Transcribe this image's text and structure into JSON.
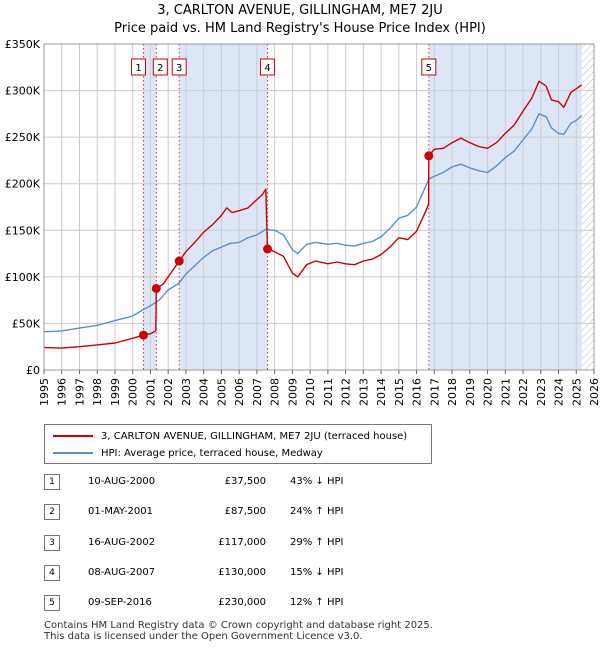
{
  "chart_data": {
    "type": "line",
    "title": "3, CARLTON AVENUE, GILLINGHAM, ME7 2JU",
    "subtitle": "Price paid vs. HM Land Registry's House Price Index (HPI)",
    "xlabel": "",
    "ylabel": "",
    "xlim": [
      1995,
      2026
    ],
    "ylim": [
      0,
      350000
    ],
    "x_ticks": [
      "1995",
      "1996",
      "1997",
      "1998",
      "1999",
      "2000",
      "2001",
      "2002",
      "2003",
      "2004",
      "2005",
      "2006",
      "2007",
      "2008",
      "2009",
      "2010",
      "2011",
      "2012",
      "2013",
      "2014",
      "2015",
      "2016",
      "2017",
      "2018",
      "2019",
      "2020",
      "2021",
      "2022",
      "2023",
      "2024",
      "2025",
      "2026"
    ],
    "y_ticks": [
      {
        "value": 0,
        "label": "£0"
      },
      {
        "value": 50000,
        "label": "£50K"
      },
      {
        "value": 100000,
        "label": "£100K"
      },
      {
        "value": 150000,
        "label": "£150K"
      },
      {
        "value": 200000,
        "label": "£200K"
      },
      {
        "value": 250000,
        "label": "£250K"
      },
      {
        "value": 300000,
        "label": "£300K"
      },
      {
        "value": 350000,
        "label": "£350K"
      }
    ],
    "colors": {
      "price": "#cc0000",
      "hpi": "#5b8fc9",
      "shade": "#dde6f7",
      "grid": "#cccccc"
    },
    "shaded_ranges": [
      [
        2000.61,
        2001.33
      ],
      [
        2002.62,
        2007.6
      ],
      [
        2016.69,
        2025.3
      ]
    ],
    "future_start": 2025.3,
    "series": [
      {
        "name": "3, CARLTON AVENUE, GILLINGHAM, ME7 2JU (terraced house)",
        "color": "#cc0000",
        "points": [
          [
            1995,
            24000
          ],
          [
            1996,
            23500
          ],
          [
            1997,
            25000
          ],
          [
            1998,
            27000
          ],
          [
            1999,
            29000
          ],
          [
            2000,
            34000
          ],
          [
            2000.6,
            37500
          ],
          [
            2001,
            39000
          ],
          [
            2001.3,
            42000
          ],
          [
            2001.33,
            87500
          ],
          [
            2001.7,
            92000
          ],
          [
            2002,
            100000
          ],
          [
            2002.62,
            117000
          ],
          [
            2003,
            127000
          ],
          [
            2003.5,
            137000
          ],
          [
            2004,
            148000
          ],
          [
            2004.5,
            156000
          ],
          [
            2005,
            166000
          ],
          [
            2005.3,
            174000
          ],
          [
            2005.6,
            169000
          ],
          [
            2006,
            171000
          ],
          [
            2006.5,
            174000
          ],
          [
            2007,
            183000
          ],
          [
            2007.3,
            188000
          ],
          [
            2007.5,
            194000
          ],
          [
            2007.6,
            130000
          ],
          [
            2008,
            127000
          ],
          [
            2008.5,
            122000
          ],
          [
            2009,
            104000
          ],
          [
            2009.3,
            100000
          ],
          [
            2009.8,
            113000
          ],
          [
            2010.3,
            117000
          ],
          [
            2011,
            114000
          ],
          [
            2011.5,
            116000
          ],
          [
            2012,
            114000
          ],
          [
            2012.5,
            113000
          ],
          [
            2013,
            117000
          ],
          [
            2013.5,
            119000
          ],
          [
            2014,
            124000
          ],
          [
            2014.5,
            132000
          ],
          [
            2015,
            142000
          ],
          [
            2015.5,
            140000
          ],
          [
            2016,
            149000
          ],
          [
            2016.5,
            170000
          ],
          [
            2016.68,
            178000
          ],
          [
            2016.69,
            230000
          ],
          [
            2017,
            237000
          ],
          [
            2017.5,
            238000
          ],
          [
            2018,
            244000
          ],
          [
            2018.5,
            249000
          ],
          [
            2019,
            244000
          ],
          [
            2019.5,
            240000
          ],
          [
            2020,
            238000
          ],
          [
            2020.5,
            244000
          ],
          [
            2021,
            254000
          ],
          [
            2021.5,
            263000
          ],
          [
            2022,
            278000
          ],
          [
            2022.5,
            292000
          ],
          [
            2022.9,
            310000
          ],
          [
            2023.3,
            305000
          ],
          [
            2023.6,
            290000
          ],
          [
            2024,
            288000
          ],
          [
            2024.3,
            282000
          ],
          [
            2024.7,
            298000
          ],
          [
            2025,
            302000
          ],
          [
            2025.3,
            306000
          ]
        ]
      },
      {
        "name": "HPI: Average price, terraced house, Medway",
        "color": "#5b8fc9",
        "points": [
          [
            1995,
            41000
          ],
          [
            1996,
            42000
          ],
          [
            1997,
            45000
          ],
          [
            1998,
            48000
          ],
          [
            1999,
            53000
          ],
          [
            2000,
            58000
          ],
          [
            2000.6,
            65000
          ],
          [
            2001,
            69000
          ],
          [
            2001.5,
            75000
          ],
          [
            2002,
            86000
          ],
          [
            2002.6,
            93000
          ],
          [
            2003,
            103000
          ],
          [
            2003.5,
            112000
          ],
          [
            2004,
            121000
          ],
          [
            2004.5,
            128000
          ],
          [
            2005,
            132000
          ],
          [
            2005.5,
            136000
          ],
          [
            2006,
            137000
          ],
          [
            2006.5,
            142000
          ],
          [
            2007,
            145000
          ],
          [
            2007.5,
            151000
          ],
          [
            2008,
            150000
          ],
          [
            2008.5,
            145000
          ],
          [
            2009,
            129000
          ],
          [
            2009.3,
            125000
          ],
          [
            2009.8,
            135000
          ],
          [
            2010.3,
            137000
          ],
          [
            2011,
            135000
          ],
          [
            2011.5,
            136000
          ],
          [
            2012,
            134000
          ],
          [
            2012.5,
            133000
          ],
          [
            2013,
            136000
          ],
          [
            2013.5,
            138000
          ],
          [
            2014,
            143000
          ],
          [
            2014.5,
            152000
          ],
          [
            2015,
            163000
          ],
          [
            2015.5,
            166000
          ],
          [
            2016,
            175000
          ],
          [
            2016.69,
            205000
          ],
          [
            2017,
            208000
          ],
          [
            2017.5,
            212000
          ],
          [
            2018,
            218000
          ],
          [
            2018.5,
            221000
          ],
          [
            2019,
            217000
          ],
          [
            2019.5,
            214000
          ],
          [
            2020,
            212000
          ],
          [
            2020.5,
            219000
          ],
          [
            2021,
            228000
          ],
          [
            2021.5,
            235000
          ],
          [
            2022,
            247000
          ],
          [
            2022.5,
            259000
          ],
          [
            2022.9,
            275000
          ],
          [
            2023.3,
            272000
          ],
          [
            2023.6,
            260000
          ],
          [
            2024,
            254000
          ],
          [
            2024.3,
            253000
          ],
          [
            2024.7,
            265000
          ],
          [
            2025,
            268000
          ],
          [
            2025.3,
            273000
          ]
        ]
      }
    ],
    "transactions": [
      {
        "num": "1",
        "date": "10-AUG-2000",
        "price": "£37,500",
        "hpi": "43% ↓ HPI",
        "x": 2000.61,
        "value": 37500
      },
      {
        "num": "2",
        "date": "01-MAY-2001",
        "price": "£87,500",
        "hpi": "24% ↑ HPI",
        "x": 2001.33,
        "value": 87500
      },
      {
        "num": "3",
        "date": "16-AUG-2002",
        "price": "£117,000",
        "hpi": "29% ↑ HPI",
        "x": 2002.62,
        "value": 117000
      },
      {
        "num": "4",
        "date": "08-AUG-2007",
        "price": "£130,000",
        "hpi": "15% ↓ HPI",
        "x": 2007.6,
        "value": 130000
      },
      {
        "num": "5",
        "date": "09-SEP-2016",
        "price": "£230,000",
        "hpi": "12% ↑ HPI",
        "x": 2016.69,
        "value": 230000
      }
    ]
  },
  "legend": {
    "items": [
      {
        "label": "3, CARLTON AVENUE, GILLINGHAM, ME7 2JU (terraced house)",
        "color": "#cc0000"
      },
      {
        "label": "HPI: Average price, terraced house, Medway",
        "color": "#5b8fc9"
      }
    ]
  },
  "footer": {
    "line1": "Contains HM Land Registry data © Crown copyright and database right 2025.",
    "line2": "This data is licensed under the Open Government Licence v3.0."
  }
}
